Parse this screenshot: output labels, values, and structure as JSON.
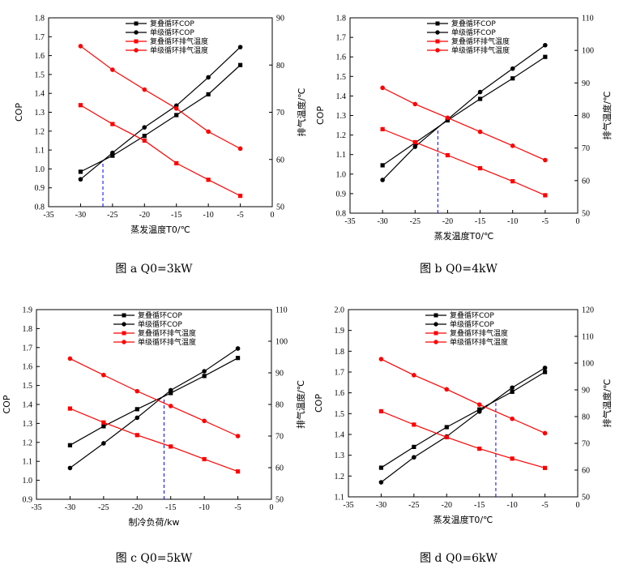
{
  "chart_data": [
    {
      "type": "line",
      "caption": "图 a Q0=3kW",
      "xlabel": "蒸发温度T0/℃",
      "ylabel": "COP",
      "y2label": "排气温度/℃",
      "xlim": [
        -35,
        0
      ],
      "xticks": [
        -35,
        -30,
        -25,
        -20,
        -15,
        -10,
        -5,
        0
      ],
      "ylim": [
        0.8,
        1.8
      ],
      "yticks": [
        0.8,
        0.9,
        1.0,
        1.1,
        1.2,
        1.3,
        1.4,
        1.5,
        1.6,
        1.7,
        1.8
      ],
      "y2lim": [
        50,
        90
      ],
      "y2ticks": [
        50,
        60,
        70,
        80,
        90
      ],
      "legend": [
        "复叠循环COP",
        "单级循环COP",
        "复叠循环排气温度",
        "单级循环排气温度"
      ],
      "x": [
        -30,
        -25,
        -20,
        -15,
        -10,
        -5
      ],
      "series": [
        {
          "name": "复叠循环COP",
          "axis": "left",
          "color": "#000000",
          "marker": "square",
          "values": [
            0.985,
            1.07,
            1.175,
            1.285,
            1.395,
            1.55
          ]
        },
        {
          "name": "单级循环COP",
          "axis": "left",
          "color": "#000000",
          "marker": "circle",
          "values": [
            0.945,
            1.085,
            1.22,
            1.335,
            1.485,
            1.645
          ]
        },
        {
          "name": "复叠循环排气温度",
          "axis": "right",
          "color": "#ff0000",
          "marker": "square",
          "values": [
            71.5,
            67.5,
            64,
            59.2,
            55.7,
            52.3
          ]
        },
        {
          "name": "单级循环排气温度",
          "axis": "right",
          "color": "#ff0000",
          "marker": "circle",
          "values": [
            84,
            79,
            74.8,
            70.8,
            65.9,
            62.3
          ]
        }
      ],
      "intersection_x": -26.5
    },
    {
      "type": "line",
      "caption": "图 b Q0=4kW",
      "xlabel": "蒸发温度T0/℃",
      "ylabel": "COP",
      "y2label": "排气温度/℃",
      "xlim": [
        -35,
        0
      ],
      "xticks": [
        -35,
        -30,
        -25,
        -20,
        -15,
        -10,
        -5,
        0
      ],
      "ylim": [
        0.8,
        1.8
      ],
      "yticks": [
        0.8,
        0.9,
        1.0,
        1.1,
        1.2,
        1.3,
        1.4,
        1.5,
        1.6,
        1.7,
        1.8
      ],
      "y2lim": [
        50,
        110
      ],
      "y2ticks": [
        50,
        60,
        70,
        80,
        90,
        100,
        110
      ],
      "legend": [
        "复叠循环COP",
        "单级循环COP",
        "复叠循环排气温度",
        "单级循环排气温度"
      ],
      "x": [
        -30,
        -25,
        -20,
        -15,
        -10,
        -5
      ],
      "series": [
        {
          "name": "复叠循环COP",
          "axis": "left",
          "color": "#000000",
          "marker": "square",
          "values": [
            1.045,
            1.16,
            1.275,
            1.385,
            1.49,
            1.6
          ]
        },
        {
          "name": "单级循环COP",
          "axis": "left",
          "color": "#000000",
          "marker": "circle",
          "values": [
            0.97,
            1.14,
            1.28,
            1.42,
            1.54,
            1.66
          ]
        },
        {
          "name": "复叠循环排气温度",
          "axis": "right",
          "color": "#ff0000",
          "marker": "square",
          "values": [
            75.8,
            71.8,
            67.8,
            63.8,
            59.8,
            55.5
          ]
        },
        {
          "name": "单级循环排气温度",
          "axis": "right",
          "color": "#ff0000",
          "marker": "circle",
          "values": [
            88.5,
            83.5,
            79.3,
            75,
            70.7,
            66.3
          ]
        }
      ],
      "intersection_x": -21.5
    },
    {
      "type": "line",
      "caption": "图 c Q0=5kW",
      "xlabel": "制冷负荷/kw",
      "ylabel": "COP",
      "y2label": "排气温度/℃",
      "xlim": [
        -35,
        0
      ],
      "xticks": [
        -35,
        -30,
        -25,
        -20,
        -15,
        -10,
        -5,
        0
      ],
      "ylim": [
        0.9,
        1.9
      ],
      "yticks": [
        0.9,
        1.0,
        1.1,
        1.2,
        1.3,
        1.4,
        1.5,
        1.6,
        1.7,
        1.8,
        1.9
      ],
      "y2lim": [
        50,
        110
      ],
      "y2ticks": [
        50,
        60,
        70,
        80,
        90,
        100,
        110
      ],
      "legend": [
        "复叠循环COP",
        "单级循环COP",
        "复叠循环排气温度",
        "单级循环排气温度"
      ],
      "x": [
        -30,
        -25,
        -20,
        -15,
        -10,
        -5
      ],
      "series": [
        {
          "name": "复叠循环COP",
          "axis": "left",
          "color": "#000000",
          "marker": "square",
          "values": [
            1.185,
            1.285,
            1.375,
            1.46,
            1.55,
            1.645
          ]
        },
        {
          "name": "单级循环COP",
          "axis": "left",
          "color": "#000000",
          "marker": "circle",
          "values": [
            1.065,
            1.195,
            1.33,
            1.475,
            1.575,
            1.695
          ]
        },
        {
          "name": "复叠循环排气温度",
          "axis": "right",
          "color": "#ff0000",
          "marker": "square",
          "values": [
            78.7,
            74.3,
            70.3,
            66.7,
            62.7,
            58.8
          ]
        },
        {
          "name": "单级循环排气温度",
          "axis": "right",
          "color": "#ff0000",
          "marker": "circle",
          "values": [
            94.5,
            89.3,
            84.2,
            79.5,
            74.8,
            70
          ]
        }
      ],
      "intersection_x": -16
    },
    {
      "type": "line",
      "caption": "图 d Q0=6kW",
      "xlabel": "蒸发温度T0/℃",
      "ylabel": "COP",
      "y2label": "排气温度/℃",
      "xlim": [
        -35,
        0
      ],
      "xticks": [
        -35,
        -30,
        -25,
        -20,
        -15,
        -10,
        -5,
        0
      ],
      "ylim": [
        1.1,
        2.0
      ],
      "yticks": [
        1.1,
        1.2,
        1.3,
        1.4,
        1.5,
        1.6,
        1.7,
        1.8,
        1.9,
        2.0
      ],
      "y2lim": [
        50,
        120
      ],
      "y2ticks": [
        50,
        60,
        70,
        80,
        90,
        100,
        110,
        120
      ],
      "legend": [
        "复叠循环COP",
        "单级循环COP",
        "复叠循环排气温度",
        "单级循环排气温度"
      ],
      "x": [
        -30,
        -25,
        -20,
        -15,
        -10,
        -5
      ],
      "series": [
        {
          "name": "复叠循环COP",
          "axis": "left",
          "color": "#000000",
          "marker": "square",
          "values": [
            1.24,
            1.34,
            1.435,
            1.52,
            1.605,
            1.7
          ]
        },
        {
          "name": "单级循环COP",
          "axis": "left",
          "color": "#000000",
          "marker": "circle",
          "values": [
            1.17,
            1.29,
            1.39,
            1.51,
            1.625,
            1.72
          ]
        },
        {
          "name": "复叠循环排气温度",
          "axis": "right",
          "color": "#ff0000",
          "marker": "square",
          "values": [
            82,
            77,
            72.3,
            68,
            64.3,
            60.8
          ]
        },
        {
          "name": "单级循环排气温度",
          "axis": "right",
          "color": "#ff0000",
          "marker": "circle",
          "values": [
            101.5,
            95.5,
            90.2,
            84.5,
            79.2,
            73.8
          ]
        }
      ],
      "intersection_x": -12.5
    }
  ]
}
